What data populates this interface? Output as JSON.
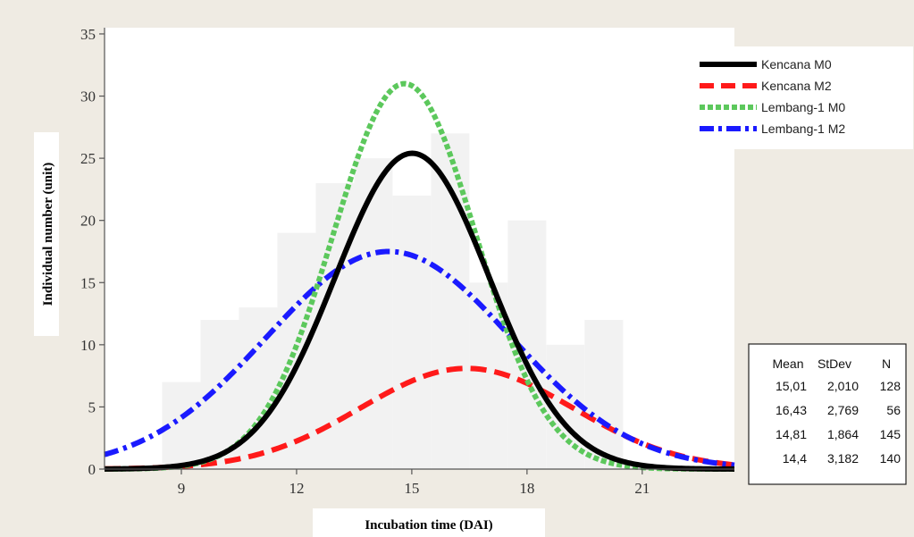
{
  "chart_data": {
    "type": "histogram-with-normal-fits",
    "xlabel": "Incubation time (DAI)",
    "ylabel": "Individual number (unit)",
    "xlim": [
      7,
      23.4
    ],
    "ylim": [
      0,
      35.5
    ],
    "x_ticks": [
      "9",
      "12",
      "15",
      "18",
      "21"
    ],
    "x_tick_values": [
      9,
      12,
      15,
      18,
      21
    ],
    "y_ticks": [
      "0",
      "5",
      "10",
      "15",
      "20",
      "25",
      "30",
      "35"
    ],
    "y_tick_values": [
      0,
      5,
      10,
      15,
      20,
      25,
      30,
      35
    ],
    "histogram": {
      "color": "#f2f2f2",
      "bars": [
        {
          "x0": 8.5,
          "x1": 9.5,
          "value": 7
        },
        {
          "x0": 9.5,
          "x1": 10.5,
          "value": 12
        },
        {
          "x0": 10.5,
          "x1": 11.5,
          "value": 13
        },
        {
          "x0": 11.5,
          "x1": 12.5,
          "value": 19
        },
        {
          "x0": 12.5,
          "x1": 13.5,
          "value": 23
        },
        {
          "x0": 13.5,
          "x1": 14.5,
          "value": 25
        },
        {
          "x0": 14.5,
          "x1": 15.5,
          "value": 22
        },
        {
          "x0": 15.5,
          "x1": 16.5,
          "value": 27
        },
        {
          "x0": 16.5,
          "x1": 17.5,
          "value": 15
        },
        {
          "x0": 17.5,
          "x1": 18.5,
          "value": 20
        },
        {
          "x0": 18.5,
          "x1": 19.5,
          "value": 10
        },
        {
          "x0": 19.5,
          "x1": 20.5,
          "value": 12
        }
      ]
    },
    "series": [
      {
        "name": "Kencana M0",
        "color": "#000000",
        "style": "solid",
        "mean": 15.01,
        "sd": 2.01,
        "peak": 25.4
      },
      {
        "name": "Kencana M2",
        "color": "#ff1a1a",
        "style": "dash",
        "mean": 16.43,
        "sd": 2.769,
        "peak": 8.1
      },
      {
        "name": "Lembang-1 M0",
        "color": "#5cc85c",
        "style": "dot",
        "mean": 14.81,
        "sd": 1.864,
        "peak": 31.0
      },
      {
        "name": "Lembang-1 M2",
        "color": "#1a1aff",
        "style": "dashdot",
        "mean": 14.4,
        "sd": 3.182,
        "peak": 17.5
      }
    ],
    "legend_placement": "top-right",
    "stats_table": {
      "headers": [
        "Mean",
        "StDev",
        "N"
      ],
      "rows": [
        [
          "15,01",
          "2,010",
          "128"
        ],
        [
          "16,43",
          "2,769",
          "56"
        ],
        [
          "14,81",
          "1,864",
          "145"
        ],
        [
          "14,4",
          "3,182",
          "140"
        ]
      ]
    }
  },
  "colors": {
    "page_background": "#efebe3",
    "plot_background": "#ffffff"
  }
}
